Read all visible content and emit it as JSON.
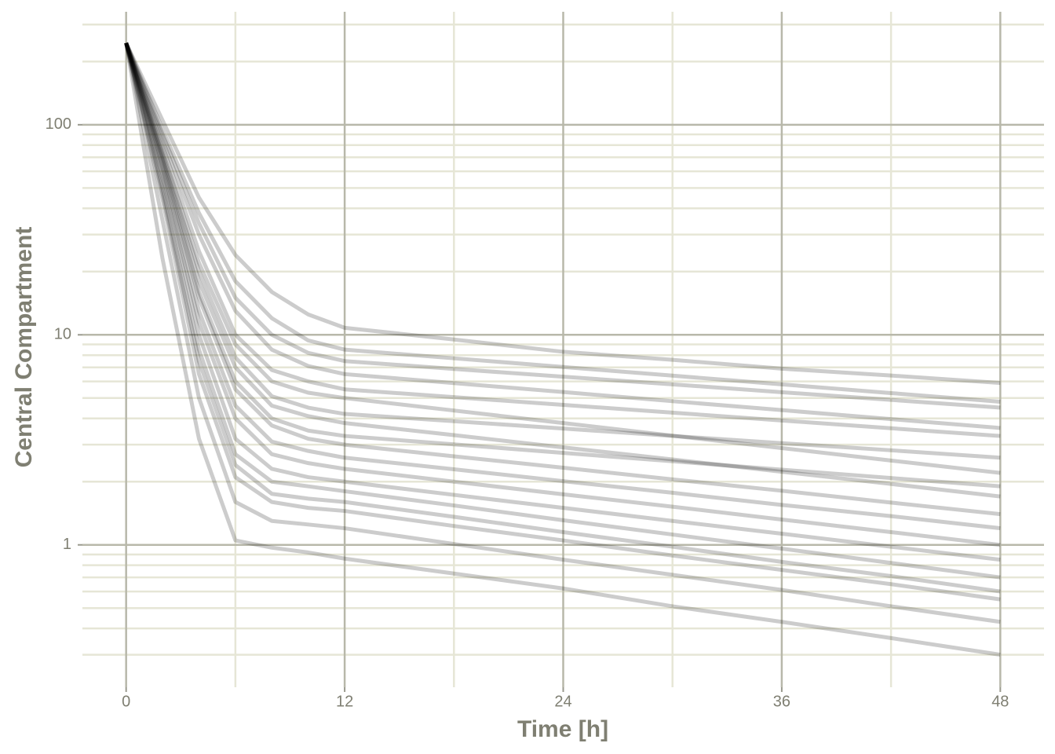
{
  "chart_data": {
    "type": "line",
    "xlabel": "Time [h]",
    "ylabel": "Central Compartment",
    "x": [
      0,
      2,
      4,
      6,
      8,
      10,
      12,
      18,
      24,
      30,
      36,
      42,
      48
    ],
    "xlim": [
      -2.4,
      50.4
    ],
    "xticks": [
      0,
      12,
      24,
      36,
      48
    ],
    "x_minor_ticks": [
      6,
      18,
      30,
      42
    ],
    "ylim": [
      0.21,
      345
    ],
    "yscale": "log",
    "yticks": [
      1,
      10,
      100
    ],
    "y_minor_ticks": [
      0.3,
      0.4,
      0.5,
      0.6,
      0.7,
      0.8,
      0.9,
      2,
      3,
      4,
      5,
      6,
      7,
      8,
      9,
      20,
      30,
      40,
      50,
      60,
      70,
      80,
      90,
      200,
      300
    ],
    "grid": true,
    "color": "#000000",
    "opacity": 0.2,
    "series": [
      {
        "values": [
          245,
          105,
          45,
          24,
          16,
          12.5,
          10.8,
          9.5,
          8.3,
          7.6,
          6.9,
          6.4,
          5.9
        ]
      },
      {
        "values": [
          245,
          95,
          38,
          18,
          12,
          9.4,
          8.5,
          7.73,
          7.03,
          6.39,
          5.81,
          5.28,
          4.8
        ]
      },
      {
        "values": [
          245,
          90,
          34,
          15,
          10,
          8.2,
          7.5,
          6.88,
          6.32,
          5.81,
          5.33,
          4.9,
          4.5
        ]
      },
      {
        "values": [
          245,
          85,
          30,
          13,
          8.5,
          7.1,
          6.5,
          5.89,
          5.34,
          4.83,
          4.38,
          3.97,
          3.6
        ]
      },
      {
        "values": [
          245,
          80,
          25,
          10,
          6.8,
          6.0,
          5.5,
          5.05,
          4.64,
          4.26,
          3.91,
          3.59,
          3.3
        ]
      },
      {
        "values": [
          245,
          75,
          22,
          9,
          6,
          5.3,
          5.0,
          4.36,
          3.8,
          3.31,
          2.89,
          2.52,
          2.2
        ]
      },
      {
        "values": [
          245,
          72,
          20,
          7.8,
          5.1,
          4.5,
          4.2,
          3.88,
          3.58,
          3.3,
          3.05,
          2.82,
          2.6
        ]
      },
      {
        "values": [
          245,
          70,
          18,
          7,
          4.6,
          4.1,
          3.8,
          3.33,
          2.91,
          2.55,
          2.23,
          1.95,
          1.7
        ]
      },
      {
        "values": [
          245,
          68,
          16,
          6,
          4.0,
          3.5,
          3.3,
          3.01,
          2.74,
          2.5,
          2.28,
          2.08,
          1.9
        ]
      },
      {
        "values": [
          245,
          65,
          15,
          5.5,
          3.7,
          3.2,
          3.0,
          2.64,
          2.33,
          2.05,
          1.81,
          1.59,
          1.4
        ]
      },
      {
        "values": [
          245,
          62,
          13,
          4.6,
          3.1,
          2.8,
          2.6,
          2.29,
          2.01,
          1.77,
          1.55,
          1.37,
          1.2
        ]
      },
      {
        "values": [
          245,
          58,
          11.5,
          4,
          2.7,
          2.45,
          2.3,
          2,
          1.74,
          1.52,
          1.32,
          1.15,
          1.0
        ]
      },
      {
        "values": [
          245,
          55,
          10,
          3.2,
          2.3,
          2.1,
          2.0,
          1.73,
          1.5,
          1.3,
          1.13,
          0.98,
          0.85
        ]
      },
      {
        "values": [
          245,
          50,
          8.5,
          2.7,
          2.0,
          1.9,
          1.8,
          1.54,
          1.31,
          1.12,
          0.96,
          0.82,
          0.7
        ]
      },
      {
        "values": [
          245,
          47,
          7.5,
          2.4,
          1.75,
          1.66,
          1.6,
          1.36,
          1.15,
          0.98,
          0.83,
          0.71,
          0.6
        ]
      },
      {
        "values": [
          245,
          44,
          6.5,
          2.1,
          1.6,
          1.5,
          1.45,
          1.23,
          1.05,
          0.89,
          0.76,
          0.65,
          0.55
        ]
      },
      {
        "values": [
          245,
          35,
          5,
          1.6,
          1.3,
          1.25,
          1.2,
          1.01,
          0.85,
          0.72,
          0.61,
          0.51,
          0.43
        ]
      },
      {
        "values": [
          245,
          23,
          3.2,
          1.05,
          0.97,
          0.92,
          0.86,
          0.73,
          0.62,
          0.51,
          0.43,
          0.36,
          0.3
        ]
      }
    ]
  }
}
